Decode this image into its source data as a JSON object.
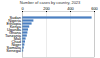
{
  "chart_data": {
    "type": "bar",
    "orientation": "horizontal",
    "title": "Number of cases by country, 2023",
    "categories": [
      "Sudan",
      "Nigeria",
      "Ethiopia",
      "Kenya",
      "Uganda",
      "Ghana",
      "Tanzania",
      "Mali",
      "Chad",
      "Niger",
      "Somalia",
      "Senegal"
    ],
    "values": [
      580,
      95,
      80,
      60,
      50,
      45,
      40,
      30,
      25,
      20,
      15,
      10
    ],
    "color": "#4a7fc1",
    "xlim": [
      0,
      600
    ],
    "xticks": [
      0,
      200,
      400,
      600
    ],
    "grid": true
  }
}
